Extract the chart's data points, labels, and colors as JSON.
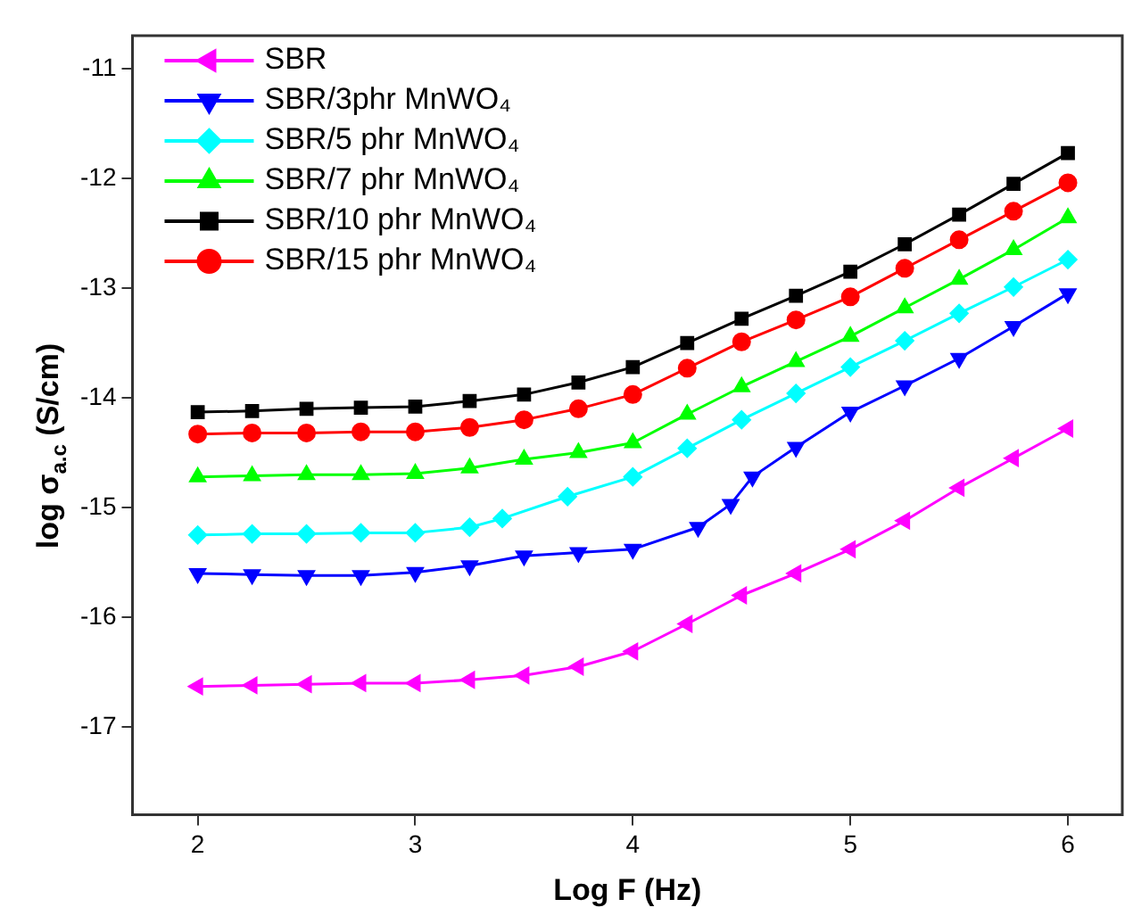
{
  "chart_data": {
    "type": "line",
    "xlabel": "Log F (Hz)",
    "ylabel": "log σ$_{a.c}$ (S/cm)",
    "xlim": [
      1.7,
      6.25
    ],
    "xticks": [
      2,
      3,
      4,
      5,
      6
    ],
    "ylim": [
      -17.8,
      -10.7
    ],
    "yticks": [
      -17,
      -16,
      -15,
      -14,
      -13,
      -12,
      -11
    ],
    "grid": false,
    "legend": "top left",
    "line_style": "solid",
    "series": [
      {
        "name": "SBR",
        "color": "#ff00ff",
        "marker": "triangle-left",
        "x": [
          2,
          2.25,
          2.5,
          2.75,
          3,
          3.25,
          3.5,
          3.75,
          4,
          4.25,
          4.5,
          4.75,
          5,
          5.25,
          5.5,
          5.75,
          6
        ],
        "values": [
          -16.63,
          -16.62,
          -16.61,
          -16.6,
          -16.6,
          -16.57,
          -16.53,
          -16.45,
          -16.31,
          -16.06,
          -15.8,
          -15.6,
          -15.38,
          -15.12,
          -14.82,
          -14.55,
          -14.28
        ]
      },
      {
        "name": "SBR/3phr MnWO₄",
        "color": "#0000ff",
        "marker": "triangle-down",
        "x": [
          2,
          2.25,
          2.5,
          2.75,
          3,
          3.25,
          3.5,
          3.75,
          4,
          4.3,
          4.45,
          4.55,
          4.75,
          5,
          5.25,
          5.5,
          5.75,
          6
        ],
        "values": [
          -15.6,
          -15.61,
          -15.62,
          -15.62,
          -15.59,
          -15.53,
          -15.44,
          -15.41,
          -15.38,
          -15.18,
          -14.97,
          -14.72,
          -14.45,
          -14.13,
          -13.89,
          -13.64,
          -13.35,
          -13.05
        ]
      },
      {
        "name": "SBR/5 phr MnWO₄",
        "color": "#00ffff",
        "marker": "diamond",
        "x": [
          2,
          2.25,
          2.5,
          2.75,
          3,
          3.25,
          3.4,
          3.7,
          4,
          4.25,
          4.5,
          4.75,
          5,
          5.25,
          5.5,
          5.75,
          6
        ],
        "values": [
          -15.25,
          -15.24,
          -15.24,
          -15.23,
          -15.23,
          -15.18,
          -15.1,
          -14.9,
          -14.72,
          -14.46,
          -14.2,
          -13.96,
          -13.72,
          -13.48,
          -13.23,
          -12.99,
          -12.74
        ]
      },
      {
        "name": "SBR/7 phr MnWO₄",
        "color": "#00ff00",
        "marker": "triangle",
        "x": [
          2,
          2.25,
          2.5,
          2.75,
          3,
          3.25,
          3.5,
          3.75,
          4,
          4.25,
          4.5,
          4.75,
          5,
          5.25,
          5.5,
          5.75,
          6
        ],
        "values": [
          -14.72,
          -14.71,
          -14.7,
          -14.7,
          -14.69,
          -14.64,
          -14.56,
          -14.5,
          -14.41,
          -14.15,
          -13.9,
          -13.67,
          -13.44,
          -13.18,
          -12.92,
          -12.65,
          -12.36
        ]
      },
      {
        "name": "SBR/10 phr MnWO₄",
        "color": "#000000",
        "marker": "square",
        "x": [
          2,
          2.25,
          2.5,
          2.75,
          3,
          3.25,
          3.5,
          3.75,
          4,
          4.25,
          4.5,
          4.75,
          5,
          5.25,
          5.5,
          5.75,
          6
        ],
        "values": [
          -14.13,
          -14.12,
          -14.1,
          -14.09,
          -14.08,
          -14.03,
          -13.97,
          -13.86,
          -13.72,
          -13.5,
          -13.28,
          -13.07,
          -12.85,
          -12.6,
          -12.33,
          -12.05,
          -11.77
        ]
      },
      {
        "name": "SBR/15 phr MnWO₄",
        "color": "#ff0000",
        "marker": "circle",
        "x": [
          2,
          2.25,
          2.5,
          2.75,
          3,
          3.25,
          3.5,
          3.75,
          4,
          4.25,
          4.5,
          4.75,
          5,
          5.25,
          5.5,
          5.75,
          6
        ],
        "values": [
          -14.33,
          -14.32,
          -14.32,
          -14.31,
          -14.31,
          -14.27,
          -14.2,
          -14.1,
          -13.97,
          -13.73,
          -13.49,
          -13.29,
          -13.08,
          -12.82,
          -12.56,
          -12.3,
          -12.04
        ]
      }
    ]
  }
}
